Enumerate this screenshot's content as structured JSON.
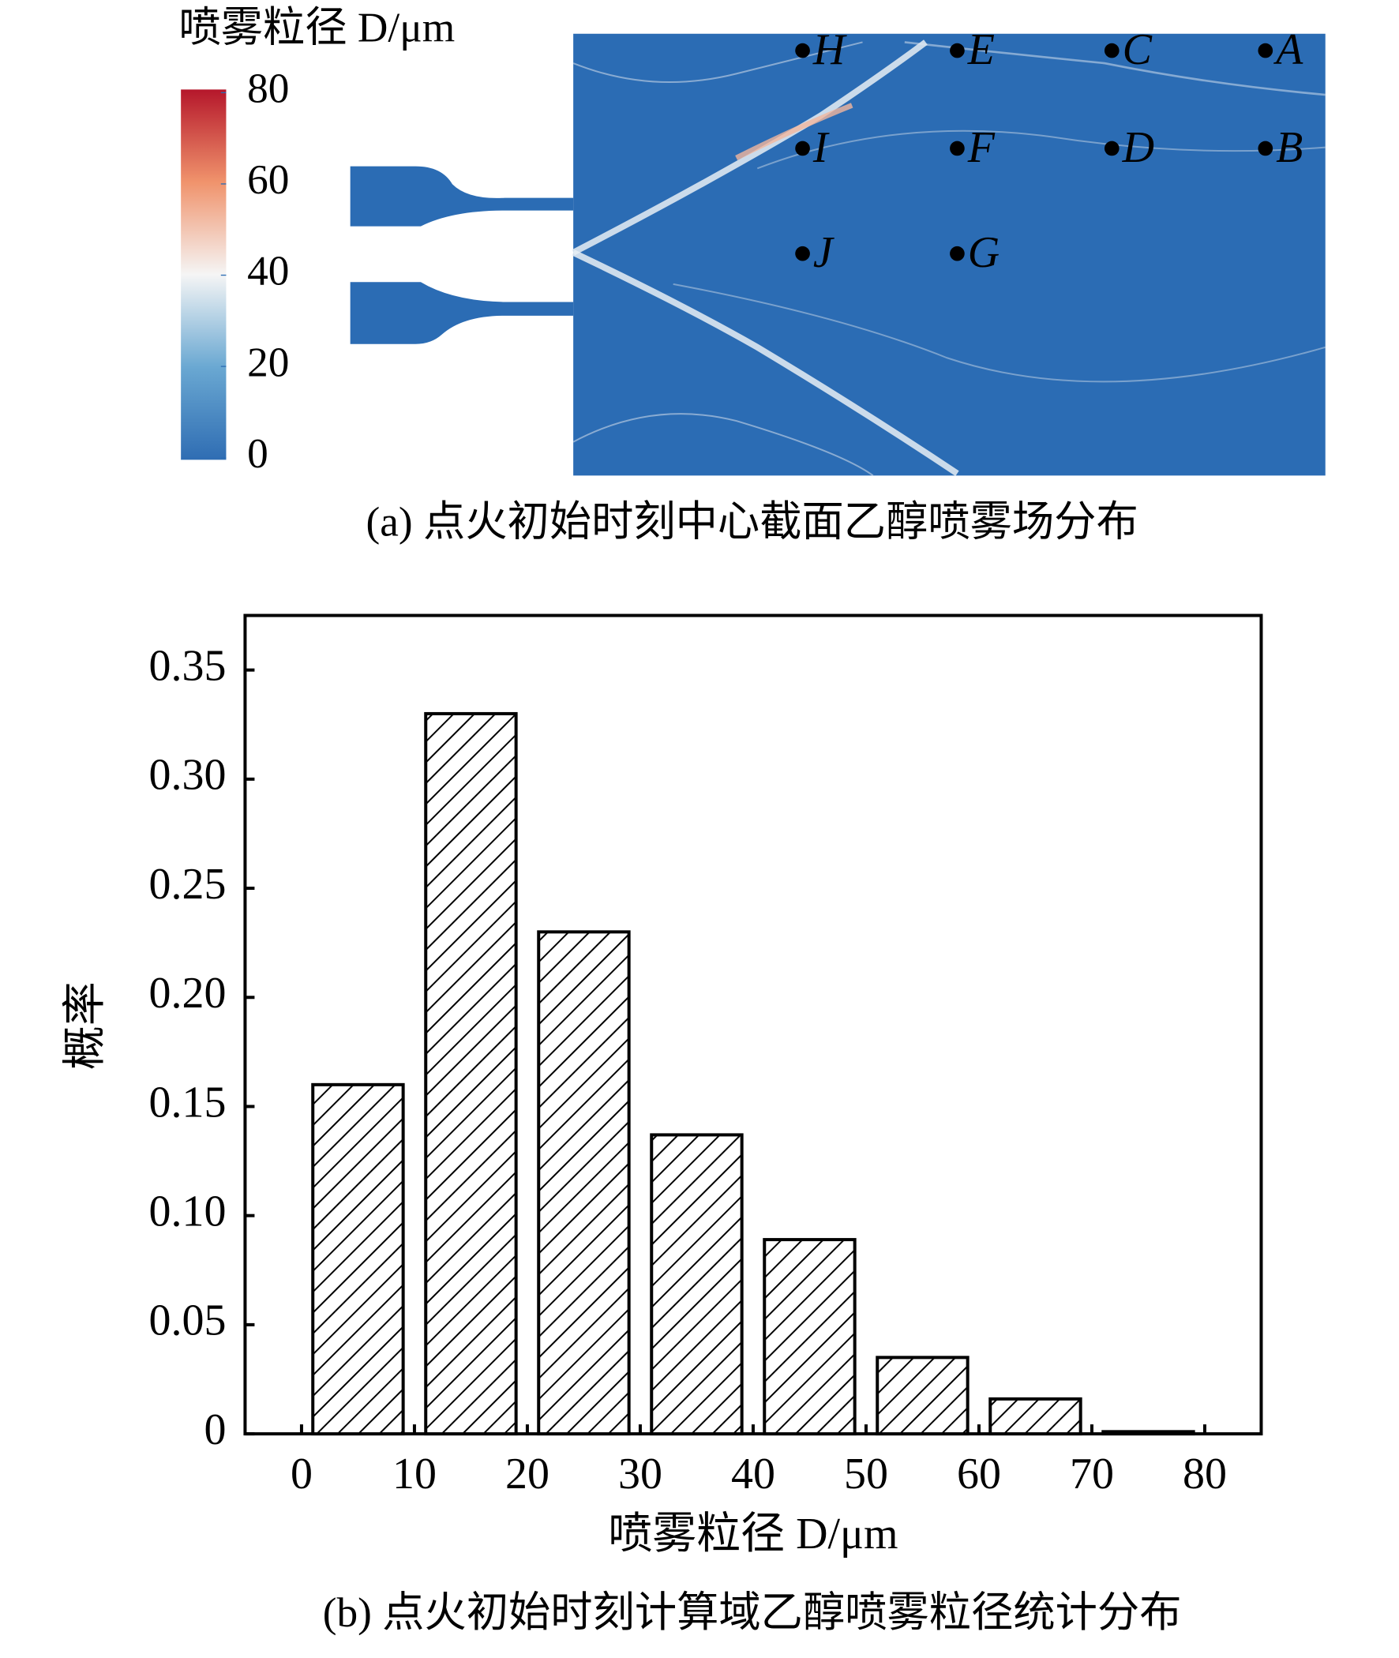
{
  "chart_data": [
    {
      "type": "field",
      "colorbar_label": "喷雾粒径 D/μm",
      "clim": [
        0,
        80
      ],
      "colorbar_ticks": [
        0,
        20,
        40,
        60,
        80
      ],
      "points": [
        "H",
        "E",
        "C",
        "A",
        "I",
        "F",
        "D",
        "B",
        "J",
        "G"
      ],
      "caption": "(a) 点火初始时刻中心截面乙醇喷雾场分布"
    },
    {
      "type": "histogram",
      "bins": [
        0,
        10,
        20,
        30,
        40,
        50,
        60,
        70,
        80
      ],
      "values": [
        0.16,
        0.33,
        0.23,
        0.137,
        0.089,
        0.035,
        0.016,
        0.001
      ],
      "xlim": [
        -5,
        85
      ],
      "xticks": [
        0,
        10,
        20,
        30,
        40,
        50,
        60,
        70,
        80
      ],
      "ylim": [
        0,
        0.375
      ],
      "yticks": [
        0,
        0.05,
        {
          "value": 0.1,
          "label": "0.10"
        },
        0.15,
        {
          "value": 0.2,
          "label": "0.20"
        },
        0.25,
        {
          "value": 0.3,
          "label": "0.30"
        },
        0.35
      ],
      "xlabel": "喷雾粒径 D/μm",
      "ylabel": "概率",
      "caption": "(b) 点火初始时刻计算域乙醇喷雾粒径统计分布"
    }
  ]
}
